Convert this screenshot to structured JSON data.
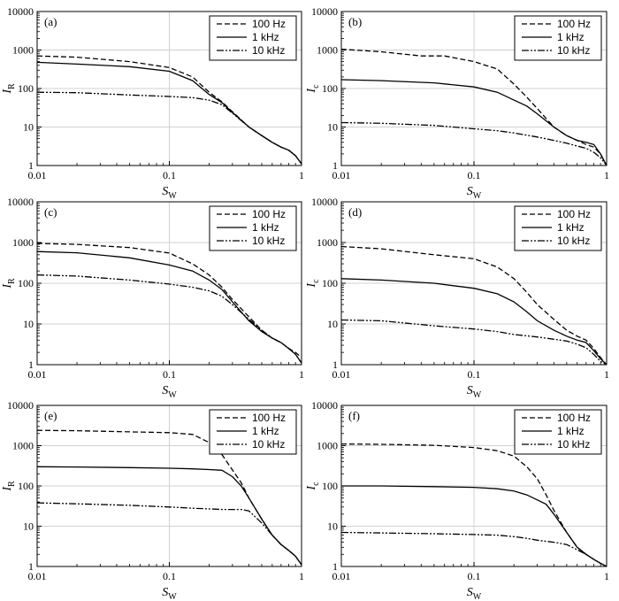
{
  "chart_data": [
    {
      "type": "line",
      "panel": "(a)",
      "xlabel": "S",
      "xlabel_sub": "W",
      "ylabel": "I",
      "ylabel_sub": "R",
      "xscale": "log",
      "yscale": "log",
      "xlim": [
        0.01,
        1
      ],
      "ylim": [
        1,
        10000
      ],
      "xticks": [
        "0.01",
        "0.1",
        "1"
      ],
      "yticks": [
        "1",
        "10",
        "100",
        "1000",
        "10000"
      ],
      "grid": true,
      "legend": "top-right",
      "series": [
        {
          "name": "100 Hz",
          "style": "dashed",
          "x": [
            0.01,
            0.02,
            0.05,
            0.1,
            0.15,
            0.2,
            0.25,
            0.3,
            0.4,
            0.5,
            0.6,
            0.7,
            0.8,
            0.9,
            1.0
          ],
          "y": [
            700,
            650,
            500,
            350,
            200,
            80,
            45,
            25,
            10,
            6,
            4,
            3,
            2.5,
            1.8,
            1.1
          ]
        },
        {
          "name": "1 kHz",
          "style": "solid",
          "x": [
            0.01,
            0.02,
            0.05,
            0.1,
            0.15,
            0.2,
            0.25,
            0.3,
            0.4,
            0.5,
            0.6,
            0.7,
            0.8,
            0.9,
            1.0
          ],
          "y": [
            480,
            430,
            370,
            280,
            160,
            70,
            43,
            24,
            10,
            6,
            4,
            3,
            2.5,
            1.8,
            1.1
          ]
        },
        {
          "name": "10 kHz",
          "style": "dashdotdot",
          "x": [
            0.01,
            0.02,
            0.05,
            0.1,
            0.15,
            0.2,
            0.25,
            0.3,
            0.4,
            0.5,
            0.6,
            0.7,
            0.8,
            0.9,
            1.0
          ],
          "y": [
            80,
            78,
            68,
            62,
            58,
            50,
            38,
            23,
            10,
            6,
            4,
            3,
            2.5,
            1.8,
            1.1
          ]
        }
      ]
    },
    {
      "type": "line",
      "panel": "(b)",
      "xlabel": "S",
      "xlabel_sub": "W",
      "ylabel": "I",
      "ylabel_sub": "c",
      "xscale": "log",
      "yscale": "log",
      "xlim": [
        0.01,
        1
      ],
      "ylim": [
        1,
        10000
      ],
      "xticks": [
        "0.01",
        "0.1",
        "1"
      ],
      "yticks": [
        "1",
        "10",
        "100",
        "1000",
        "10000"
      ],
      "grid": true,
      "legend": "top-right",
      "series": [
        {
          "name": "100 Hz",
          "style": "dashed",
          "x": [
            0.01,
            0.02,
            0.04,
            0.06,
            0.1,
            0.15,
            0.2,
            0.25,
            0.3,
            0.4,
            0.5,
            0.6,
            0.7,
            0.8,
            0.9,
            1.0
          ],
          "y": [
            1050,
            900,
            700,
            700,
            500,
            320,
            130,
            60,
            30,
            10,
            6,
            4.5,
            3.5,
            3.0,
            2.0,
            1.0
          ]
        },
        {
          "name": "1 kHz",
          "style": "solid",
          "x": [
            0.01,
            0.02,
            0.05,
            0.1,
            0.15,
            0.2,
            0.25,
            0.3,
            0.4,
            0.5,
            0.6,
            0.7,
            0.8,
            0.9,
            1.0
          ],
          "y": [
            170,
            160,
            140,
            110,
            80,
            50,
            35,
            22,
            10,
            6,
            4.5,
            4.0,
            3.5,
            2.0,
            1.0
          ]
        },
        {
          "name": "10 kHz",
          "style": "dashdotdot",
          "x": [
            0.01,
            0.02,
            0.05,
            0.1,
            0.15,
            0.2,
            0.3,
            0.4,
            0.5,
            0.6,
            0.7,
            0.8,
            0.9,
            1.0
          ],
          "y": [
            13,
            12.5,
            11,
            9,
            8,
            7,
            5.5,
            4.5,
            3.8,
            3.2,
            2.8,
            2.2,
            1.6,
            1.0
          ]
        }
      ]
    },
    {
      "type": "line",
      "panel": "(c)",
      "xlabel": "S",
      "xlabel_sub": "W",
      "ylabel": "I",
      "ylabel_sub": "R",
      "xscale": "log",
      "yscale": "log",
      "xlim": [
        0.01,
        1
      ],
      "ylim": [
        1,
        10000
      ],
      "xticks": [
        "0.01",
        "0.1",
        "1"
      ],
      "yticks": [
        "1",
        "10",
        "100",
        "1000",
        "10000"
      ],
      "grid": true,
      "legend": "top-right",
      "series": [
        {
          "name": "100 Hz",
          "style": "dashed",
          "x": [
            0.01,
            0.02,
            0.05,
            0.1,
            0.15,
            0.2,
            0.25,
            0.3,
            0.4,
            0.5,
            0.6,
            0.7,
            0.8,
            0.9,
            1.0
          ],
          "y": [
            950,
            900,
            750,
            550,
            300,
            160,
            80,
            40,
            15,
            7,
            4.5,
            3.5,
            2.5,
            2.0,
            1.5
          ]
        },
        {
          "name": "1 kHz",
          "style": "solid",
          "x": [
            0.01,
            0.02,
            0.05,
            0.1,
            0.15,
            0.2,
            0.25,
            0.3,
            0.4,
            0.5,
            0.6,
            0.7,
            0.8,
            0.9,
            1.0
          ],
          "y": [
            600,
            560,
            420,
            280,
            200,
            120,
            70,
            35,
            12,
            6.5,
            4.5,
            3.5,
            2.5,
            1.8,
            1.1
          ]
        },
        {
          "name": "10 kHz",
          "style": "dashdotdot",
          "x": [
            0.01,
            0.02,
            0.05,
            0.1,
            0.15,
            0.2,
            0.25,
            0.3,
            0.4,
            0.5,
            0.6,
            0.7,
            0.8,
            0.9,
            1.0
          ],
          "y": [
            160,
            150,
            120,
            95,
            80,
            65,
            48,
            30,
            13,
            7,
            4.5,
            3.5,
            2.5,
            1.8,
            1.1
          ]
        }
      ]
    },
    {
      "type": "line",
      "panel": "(d)",
      "xlabel": "S",
      "xlabel_sub": "W",
      "ylabel": "I",
      "ylabel_sub": "c",
      "xscale": "log",
      "yscale": "log",
      "xlim": [
        0.01,
        1
      ],
      "ylim": [
        1,
        10000
      ],
      "xticks": [
        "0.01",
        "0.1",
        "1"
      ],
      "yticks": [
        "1",
        "10",
        "100",
        "1000",
        "10000"
      ],
      "grid": true,
      "legend": "top-right",
      "series": [
        {
          "name": "100 Hz",
          "style": "dashed",
          "x": [
            0.01,
            0.02,
            0.05,
            0.1,
            0.15,
            0.2,
            0.25,
            0.3,
            0.4,
            0.5,
            0.6,
            0.7,
            0.8,
            0.9,
            1.0
          ],
          "y": [
            800,
            700,
            500,
            400,
            250,
            130,
            60,
            30,
            13,
            7,
            5,
            4,
            2.5,
            1.5,
            1.0
          ]
        },
        {
          "name": "1 kHz",
          "style": "solid",
          "x": [
            0.01,
            0.02,
            0.05,
            0.1,
            0.15,
            0.2,
            0.25,
            0.3,
            0.4,
            0.5,
            0.6,
            0.7,
            0.8,
            0.9,
            1.0
          ],
          "y": [
            130,
            120,
            100,
            75,
            55,
            35,
            20,
            12,
            7,
            5,
            4,
            3.5,
            2.2,
            1.4,
            1.0
          ]
        },
        {
          "name": "10 kHz",
          "style": "dashdotdot",
          "x": [
            0.01,
            0.02,
            0.05,
            0.1,
            0.15,
            0.2,
            0.3,
            0.4,
            0.5,
            0.6,
            0.7,
            0.8,
            0.9,
            1.0
          ],
          "y": [
            12.5,
            12,
            9,
            7.5,
            6.5,
            5.5,
            4.8,
            4.2,
            3.8,
            3.2,
            2.6,
            1.8,
            1.2,
            1.0
          ]
        }
      ]
    },
    {
      "type": "line",
      "panel": "(e)",
      "xlabel": "S",
      "xlabel_sub": "W",
      "ylabel": "I",
      "ylabel_sub": "R",
      "xscale": "log",
      "yscale": "log",
      "xlim": [
        0.01,
        1
      ],
      "ylim": [
        1,
        10000
      ],
      "xticks": [
        "0.01",
        "0.1",
        "1"
      ],
      "yticks": [
        "1",
        "10",
        "100",
        "1000",
        "10000"
      ],
      "grid": true,
      "legend": "top-right",
      "series": [
        {
          "name": "100 Hz",
          "style": "dashed",
          "x": [
            0.01,
            0.02,
            0.05,
            0.1,
            0.15,
            0.2,
            0.25,
            0.3,
            0.35,
            0.4,
            0.5,
            0.6,
            0.7,
            0.8,
            0.9,
            1.0
          ],
          "y": [
            2400,
            2350,
            2200,
            2100,
            1900,
            1200,
            600,
            250,
            120,
            50,
            15,
            6,
            3.5,
            2.5,
            1.8,
            1.1
          ]
        },
        {
          "name": "1 kHz",
          "style": "solid",
          "x": [
            0.01,
            0.02,
            0.05,
            0.1,
            0.15,
            0.2,
            0.25,
            0.3,
            0.35,
            0.4,
            0.5,
            0.6,
            0.7,
            0.8,
            0.9,
            1.0
          ],
          "y": [
            300,
            295,
            285,
            275,
            265,
            255,
            245,
            170,
            100,
            50,
            15,
            6,
            3.5,
            2.5,
            1.8,
            1.1
          ]
        },
        {
          "name": "10 kHz",
          "style": "dashdotdot",
          "x": [
            0.01,
            0.02,
            0.05,
            0.1,
            0.15,
            0.2,
            0.25,
            0.3,
            0.35,
            0.4,
            0.5,
            0.6,
            0.7,
            0.8,
            0.9,
            1.0
          ],
          "y": [
            38,
            36,
            33,
            30,
            28,
            27,
            26,
            26,
            26,
            24,
            12,
            6,
            3.5,
            2.5,
            1.8,
            1.1
          ]
        }
      ]
    },
    {
      "type": "line",
      "panel": "(f)",
      "xlabel": "S",
      "xlabel_sub": "W",
      "ylabel": "I",
      "ylabel_sub": "c",
      "xscale": "log",
      "yscale": "log",
      "xlim": [
        0.01,
        1
      ],
      "ylim": [
        1,
        10000
      ],
      "xticks": [
        "0.01",
        "0.1",
        "1"
      ],
      "yticks": [
        "1",
        "10",
        "100",
        "1000",
        "10000"
      ],
      "grid": true,
      "legend": "top-right",
      "series": [
        {
          "name": "100 Hz",
          "style": "dashed",
          "x": [
            0.01,
            0.02,
            0.05,
            0.1,
            0.15,
            0.2,
            0.25,
            0.3,
            0.35,
            0.4,
            0.5,
            0.6,
            0.7,
            0.8,
            0.9,
            1.0
          ],
          "y": [
            1100,
            1080,
            1020,
            900,
            750,
            550,
            300,
            150,
            60,
            25,
            7,
            3,
            2,
            1.5,
            1.2,
            1.0
          ]
        },
        {
          "name": "1 kHz",
          "style": "solid",
          "x": [
            0.01,
            0.02,
            0.05,
            0.1,
            0.15,
            0.2,
            0.25,
            0.3,
            0.35,
            0.4,
            0.5,
            0.6,
            0.7,
            0.8,
            0.9,
            1.0
          ],
          "y": [
            100,
            100,
            96,
            92,
            85,
            75,
            60,
            45,
            35,
            20,
            7,
            3,
            2,
            1.5,
            1.2,
            1.0
          ]
        },
        {
          "name": "10 kHz",
          "style": "dashdotdot",
          "x": [
            0.01,
            0.02,
            0.05,
            0.1,
            0.15,
            0.2,
            0.25,
            0.3,
            0.35,
            0.4,
            0.5,
            0.6,
            0.7,
            0.8,
            0.9,
            1.0
          ],
          "y": [
            7,
            6.8,
            6.5,
            6.2,
            6.0,
            5.5,
            5.0,
            4.5,
            4.2,
            4.0,
            3.5,
            2.6,
            2.0,
            1.5,
            1.2,
            1.0
          ]
        }
      ]
    }
  ]
}
